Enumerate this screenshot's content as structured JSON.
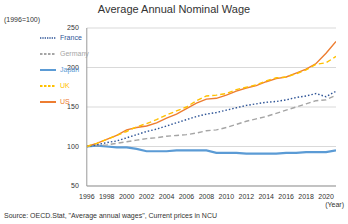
{
  "chart_data": {
    "type": "line",
    "title": "Average Annual Nominal Wage",
    "y_label": "(1996=100)",
    "x_label": "(Year)",
    "source": "Source: OECD.Stat, \"Average annual wages\", Current prices in NCU",
    "x": [
      1996,
      1997,
      1998,
      1999,
      2000,
      2001,
      2002,
      2003,
      2004,
      2005,
      2006,
      2007,
      2008,
      2009,
      2010,
      2011,
      2012,
      2013,
      2014,
      2015,
      2016,
      2017,
      2018,
      2019,
      2020,
      2021
    ],
    "series": [
      {
        "name": "Japan",
        "color": "#5b9bd5",
        "line_style": "solid",
        "values": [
          100,
          101,
          100,
          99,
          99,
          97,
          94,
          94,
          94,
          95,
          95,
          95,
          95,
          92,
          92,
          92,
          91,
          91,
          91,
          91,
          92,
          92,
          93,
          93,
          93,
          95
        ]
      },
      {
        "name": "US",
        "color": "#ed7d31",
        "line_style": "solid",
        "values": [
          100,
          104,
          109,
          114,
          121,
          124,
          126,
          130,
          136,
          141,
          148,
          155,
          160,
          161,
          165,
          170,
          174,
          177,
          182,
          186,
          188,
          193,
          198,
          205,
          218,
          233
        ]
      },
      {
        "name": "Germany",
        "color": "#a5a5a5",
        "line_style": "dashed",
        "values": [
          100,
          101,
          102,
          104,
          106,
          108,
          110,
          111,
          113,
          114,
          115,
          117,
          120,
          121,
          124,
          128,
          132,
          135,
          138,
          142,
          146,
          150,
          154,
          158,
          159,
          165
        ]
      },
      {
        "name": "France",
        "color": "#2f5597",
        "line_style": "dotted",
        "values": [
          100,
          102,
          105,
          107,
          111,
          115,
          119,
          122,
          126,
          130,
          134,
          138,
          141,
          143,
          146,
          149,
          152,
          154,
          156,
          157,
          159,
          162,
          164,
          167,
          163,
          170
        ]
      },
      {
        "name": "UK",
        "color": "#ffc000",
        "line_style": "dashed",
        "values": [
          100,
          104,
          109,
          114,
          119,
          125,
          129,
          134,
          140,
          145,
          150,
          158,
          164,
          165,
          167,
          172,
          175,
          178,
          183,
          187,
          188,
          192,
          197,
          204,
          206,
          214
        ]
      }
    ],
    "xlim": [
      1996,
      2021
    ],
    "xticks": [
      1996,
      1998,
      2000,
      2002,
      2004,
      2006,
      2008,
      2010,
      2012,
      2014,
      2016,
      2018,
      2020
    ],
    "ylim": [
      50,
      250
    ],
    "yticks": [
      50,
      100,
      150,
      200,
      250
    ],
    "grid": true,
    "legend": "upper left"
  }
}
